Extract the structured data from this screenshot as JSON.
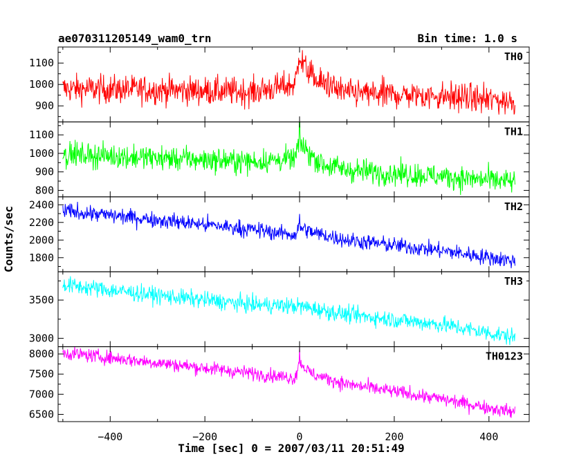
{
  "header": {
    "title": "ae070311205149_wam0_trn",
    "bin_time": "Bin time: 1.0 s"
  },
  "chart_data": {
    "type": "line",
    "title": "ae070311205149_wam0_trn",
    "subtitle": "Bin time: 1.0 s",
    "xlabel": "Time [sec] 0 = 2007/03/11 20:51:49",
    "ylabel": "Counts/sec",
    "xlim": [
      -510,
      485
    ],
    "x_ticks": [
      -400,
      -200,
      0,
      200,
      400
    ],
    "x_tick_labels": [
      "−400",
      "−200",
      "0",
      "200",
      "400"
    ],
    "x_data_range": [
      -500,
      455
    ],
    "grid": false,
    "series": [
      {
        "name": "TH0",
        "color": "#ff0000",
        "ylim": [
          825,
          1175
        ],
        "y_ticks": [
          900,
          1000,
          1100
        ],
        "trend": [
          [
            -500,
            980
          ],
          [
            -300,
            975
          ],
          [
            -100,
            965
          ],
          [
            -10,
            1000
          ],
          [
            0,
            1120
          ],
          [
            15,
            1070
          ],
          [
            40,
            1010
          ],
          [
            100,
            960
          ],
          [
            300,
            945
          ],
          [
            455,
            920
          ]
        ],
        "noise_sd": 33,
        "peaks": [
          [
            0,
            135
          ],
          [
            60,
            60
          ]
        ]
      },
      {
        "name": "TH1",
        "color": "#00ff00",
        "ylim": [
          765,
          1170
        ],
        "y_ticks": [
          800,
          900,
          1000,
          1100
        ],
        "trend": [
          [
            -500,
            995
          ],
          [
            -300,
            975
          ],
          [
            -100,
            955
          ],
          [
            -10,
            970
          ],
          [
            0,
            1060
          ],
          [
            20,
            1000
          ],
          [
            50,
            940
          ],
          [
            100,
            910
          ],
          [
            300,
            875
          ],
          [
            455,
            845
          ]
        ],
        "noise_sd": 32,
        "peaks": [
          [
            0,
            90
          ]
        ]
      },
      {
        "name": "TH2",
        "color": "#0000ff",
        "ylim": [
          1640,
          2490
        ],
        "y_ticks": [
          1800,
          2000,
          2200,
          2400
        ],
        "trend": [
          [
            -500,
            2330
          ],
          [
            -300,
            2230
          ],
          [
            -100,
            2120
          ],
          [
            -10,
            2060
          ],
          [
            0,
            2150
          ],
          [
            30,
            2080
          ],
          [
            100,
            2000
          ],
          [
            300,
            1880
          ],
          [
            455,
            1760
          ]
        ],
        "noise_sd": 45,
        "peaks": [
          [
            0,
            80
          ]
        ]
      },
      {
        "name": "TH3",
        "color": "#00ffff",
        "ylim": [
          2890,
          3870
        ],
        "y_ticks": [
          3000,
          3500
        ],
        "trend": [
          [
            -500,
            3700
          ],
          [
            -300,
            3560
          ],
          [
            -100,
            3440
          ],
          [
            0,
            3420
          ],
          [
            100,
            3310
          ],
          [
            300,
            3180
          ],
          [
            455,
            3010
          ]
        ],
        "noise_sd": 55,
        "peaks": []
      },
      {
        "name": "TH0123",
        "color": "#ff00ff",
        "ylim": [
          6320,
          8180
        ],
        "y_ticks": [
          6500,
          7000,
          7500,
          8000
        ],
        "trend": [
          [
            -500,
            8030
          ],
          [
            -300,
            7780
          ],
          [
            -100,
            7520
          ],
          [
            -10,
            7400
          ],
          [
            0,
            7800
          ],
          [
            25,
            7500
          ],
          [
            100,
            7250
          ],
          [
            300,
            6880
          ],
          [
            455,
            6550
          ]
        ],
        "noise_sd": 85,
        "peaks": [
          [
            0,
            350
          ]
        ]
      }
    ]
  }
}
